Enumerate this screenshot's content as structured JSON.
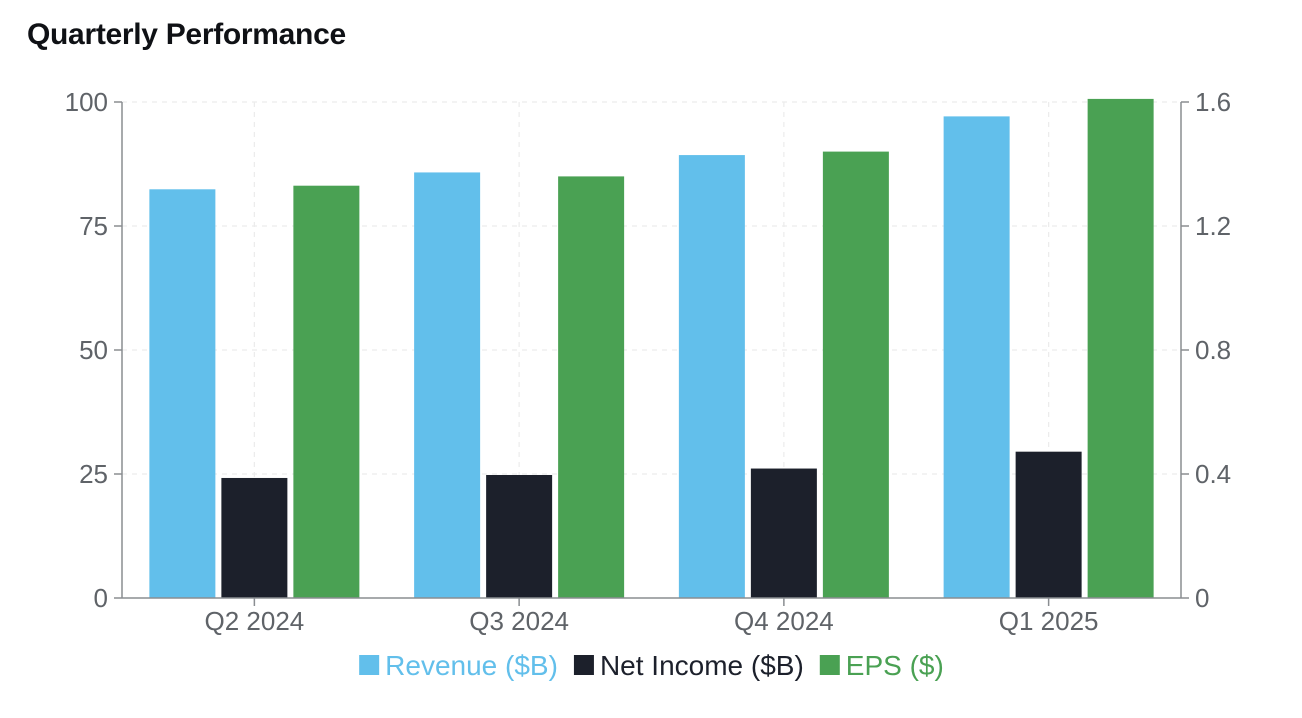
{
  "chart_data": {
    "type": "bar",
    "title": "Quarterly Performance",
    "categories": [
      "Q2 2024",
      "Q3 2024",
      "Q4 2024",
      "Q1 2025"
    ],
    "series": [
      {
        "name": "Revenue ($B)",
        "axis": "left",
        "color": "#62bfeb",
        "values": [
          82.4,
          85.8,
          89.3,
          97.1
        ]
      },
      {
        "name": "Net Income ($B)",
        "axis": "left",
        "color": "#1c202b",
        "values": [
          24.2,
          24.8,
          26.1,
          29.5
        ]
      },
      {
        "name": "EPS ($)",
        "axis": "right",
        "color": "#4aa153",
        "values": [
          1.33,
          1.36,
          1.44,
          1.61
        ]
      }
    ],
    "y_left": {
      "ylim": [
        0,
        100
      ],
      "ticks": [
        "0",
        "25",
        "50",
        "75",
        "100"
      ]
    },
    "y_right": {
      "ylim": [
        0,
        1.6
      ],
      "ticks": [
        "0",
        "0.4",
        "0.8",
        "1.2",
        "1.6"
      ]
    },
    "grid": true,
    "legend_position": "bottom"
  }
}
